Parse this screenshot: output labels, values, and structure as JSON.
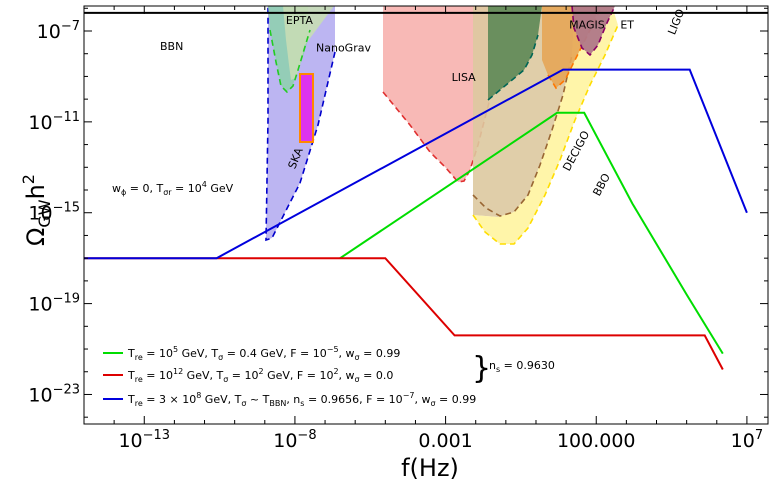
{
  "chart_data": {
    "type": "line",
    "xlabel": "f(Hz)",
    "ylabel": "Ω_GW h^2",
    "xscale": "log10",
    "yscale": "log10",
    "xlim": [
      -15,
      7.7
    ],
    "ylim": [
      -24.3,
      -5.9
    ],
    "x_ticks": [
      {
        "value": -13,
        "label": "10^-13"
      },
      {
        "value": -8,
        "label": "10^-8"
      },
      {
        "value": -3,
        "label": "0.001"
      },
      {
        "value": 2,
        "label": "100.000"
      },
      {
        "value": 7,
        "label": "10^7"
      }
    ],
    "y_ticks": [
      {
        "value": -7,
        "label": "10^-7"
      },
      {
        "value": -11,
        "label": "10^-11"
      },
      {
        "value": -15,
        "label": "10^-15"
      },
      {
        "value": -19,
        "label": "10^-19"
      },
      {
        "value": -23,
        "label": "10^-23"
      }
    ],
    "annotation": "w_ϕ = 0, T_σr = 10^4 GeV",
    "bbn": {
      "label": "BBN",
      "y": -6.2
    },
    "regions": [
      {
        "name": "EPTA",
        "color": "#8fcfb0",
        "label_pos": [
          -8.3,
          -6.7
        ]
      },
      {
        "name": "NanoGrav",
        "color": "#c7ddb5",
        "label_pos": [
          -7.3,
          -7.9
        ]
      },
      {
        "name": "SKA",
        "color": "#b0a8f0",
        "label_pos": [
          -8.0,
          -13.1
        ]
      },
      {
        "name": "LISA",
        "color": "#f7b1ae",
        "label_pos": [
          -2.8,
          -9.2
        ]
      },
      {
        "name": "MAGIS",
        "color": "#5f8a58",
        "label_pos": [
          1.1,
          -6.9
        ]
      },
      {
        "name": "ET",
        "color": "#e6a657",
        "label_pos": [
          2.8,
          -6.9
        ]
      },
      {
        "name": "LIGO",
        "color": "#b07888",
        "label_pos": [
          4.6,
          -7.2
        ]
      },
      {
        "name": "DECIGO",
        "color": "#ddc9a0",
        "label_pos": [
          1.1,
          -13.2
        ]
      },
      {
        "name": "BBO",
        "color": "#fff4a0",
        "label_pos": [
          2.1,
          -14.3
        ]
      }
    ],
    "series": [
      {
        "color": "#00dd00",
        "legend_label": "T_re = 10^5 GeV, T_σ = 0.4 GeV, F = 10^-5, w_σ = 0.99",
        "x": [
          -6.5,
          0.7,
          1.6,
          3.2,
          5.0,
          6.2
        ],
        "y": [
          -17.0,
          -10.6,
          -10.6,
          -14.6,
          -18.6,
          -21.2
        ]
      },
      {
        "color": "#dd0000",
        "legend_label": "T_re = 10^12 GeV, T_σ = 10^2 GeV, F = 10^2, w_σ = 0.0",
        "x": [
          -15.0,
          -5.0,
          -2.7,
          5.6,
          6.2
        ],
        "y": [
          -17.0,
          -17.0,
          -20.4,
          -20.4,
          -21.9
        ]
      },
      {
        "color": "#0000dd",
        "legend_label": "T_re = 3 × 10^8 GeV, T_σ ~ T_BBN, n_s = 0.9656, F = 10^-7, w_σ = 0.99",
        "x": [
          -15.0,
          -10.6,
          0.9,
          1.7,
          5.1,
          7.0
        ],
        "y": [
          -17.0,
          -17.0,
          -8.7,
          -8.7,
          -8.7,
          -15.0
        ]
      }
    ],
    "shared_label": "n_s = 0.9630"
  }
}
